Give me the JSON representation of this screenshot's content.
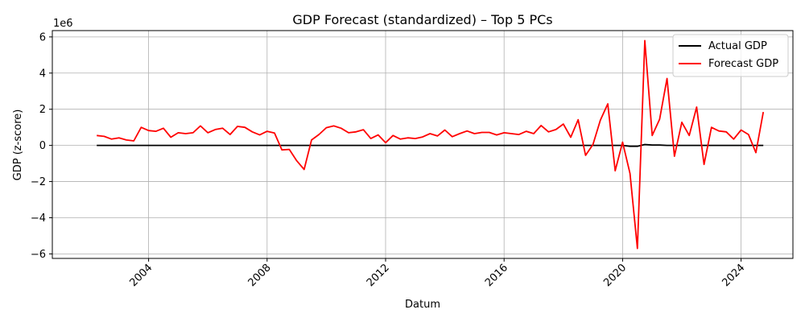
{
  "chart_data": {
    "type": "line",
    "title": "GDP Forecast (standardized) – Top 5 PCs",
    "xlabel": "Datum",
    "ylabel": "GDP (z-score)",
    "y_offset_label": "1e6",
    "xlim": [
      2000.75,
      2025.75
    ],
    "ylim": [
      -6.25,
      6.35
    ],
    "x_ticks": [
      2004,
      2008,
      2012,
      2016,
      2020,
      2024
    ],
    "x_tick_labels": [
      "2004",
      "2008",
      "2012",
      "2016",
      "2020",
      "2024"
    ],
    "y_ticks": [
      -6,
      -4,
      -2,
      0,
      2,
      4,
      6
    ],
    "y_tick_labels": [
      "−6",
      "−4",
      "−2",
      "0",
      "2",
      "4",
      "6"
    ],
    "grid": true,
    "legend_position": "top-right",
    "x": [
      2002.25,
      2002.5,
      2002.75,
      2003.0,
      2003.25,
      2003.5,
      2003.75,
      2004.0,
      2004.25,
      2004.5,
      2004.75,
      2005.0,
      2005.25,
      2005.5,
      2005.75,
      2006.0,
      2006.25,
      2006.5,
      2006.75,
      2007.0,
      2007.25,
      2007.5,
      2007.75,
      2008.0,
      2008.25,
      2008.5,
      2008.75,
      2009.0,
      2009.25,
      2009.5,
      2009.75,
      2010.0,
      2010.25,
      2010.5,
      2010.75,
      2011.0,
      2011.25,
      2011.5,
      2011.75,
      2012.0,
      2012.25,
      2012.5,
      2012.75,
      2013.0,
      2013.25,
      2013.5,
      2013.75,
      2014.0,
      2014.25,
      2014.5,
      2014.75,
      2015.0,
      2015.25,
      2015.5,
      2015.75,
      2016.0,
      2016.25,
      2016.5,
      2016.75,
      2017.0,
      2017.25,
      2017.5,
      2017.75,
      2018.0,
      2018.25,
      2018.5,
      2018.75,
      2019.0,
      2019.25,
      2019.5,
      2019.75,
      2020.0,
      2020.25,
      2020.5,
      2020.75,
      2021.0,
      2021.25,
      2021.5,
      2021.75,
      2022.0,
      2022.25,
      2022.5,
      2022.75,
      2023.0,
      2023.25,
      2023.5,
      2023.75,
      2024.0,
      2024.25,
      2024.5,
      2024.75
    ],
    "series": [
      {
        "name": "Actual GDP",
        "color": "#000000",
        "values": [
          0,
          0,
          0,
          0,
          0,
          0,
          0,
          0,
          0,
          0,
          0,
          0,
          0,
          0,
          0,
          0,
          0,
          0,
          0,
          0,
          0,
          0,
          0,
          0,
          0,
          0,
          0,
          0,
          0,
          0,
          0,
          0,
          0,
          0,
          0,
          0,
          0,
          0,
          0,
          0,
          0,
          0,
          0,
          0,
          0,
          0,
          0,
          0,
          0,
          0,
          0,
          0,
          0,
          0,
          0,
          0,
          0,
          0,
          0,
          0,
          0,
          0,
          0,
          0,
          0,
          0,
          0,
          0,
          0,
          0,
          0,
          0,
          -0.05,
          -0.05,
          0.05,
          0.02,
          0.02,
          0,
          0,
          0,
          0,
          0,
          0,
          0,
          0,
          0,
          0,
          0,
          0,
          0,
          0
        ]
      },
      {
        "name": "Forecast GDP",
        "color": "#ff0000",
        "values": [
          0.55,
          0.5,
          0.35,
          0.42,
          0.3,
          0.25,
          1.0,
          0.82,
          0.78,
          0.95,
          0.45,
          0.7,
          0.65,
          0.7,
          1.08,
          0.7,
          0.88,
          0.95,
          0.6,
          1.05,
          1.0,
          0.75,
          0.58,
          0.78,
          0.68,
          -0.25,
          -0.22,
          -0.85,
          -1.33,
          0.3,
          0.6,
          0.98,
          1.08,
          0.95,
          0.7,
          0.75,
          0.87,
          0.38,
          0.58,
          0.15,
          0.55,
          0.35,
          0.42,
          0.38,
          0.47,
          0.65,
          0.52,
          0.85,
          0.48,
          0.65,
          0.8,
          0.65,
          0.72,
          0.72,
          0.58,
          0.7,
          0.65,
          0.6,
          0.78,
          0.65,
          1.1,
          0.75,
          0.88,
          1.18,
          0.45,
          1.42,
          -0.55,
          0.05,
          1.4,
          2.3,
          -1.4,
          0.18,
          -1.55,
          -5.7,
          5.8,
          0.55,
          1.45,
          3.7,
          -0.6,
          1.28,
          0.55,
          2.12,
          -1.05,
          1.0,
          0.8,
          0.75,
          0.35,
          0.85,
          0.6,
          -0.4,
          1.85
        ]
      }
    ]
  }
}
